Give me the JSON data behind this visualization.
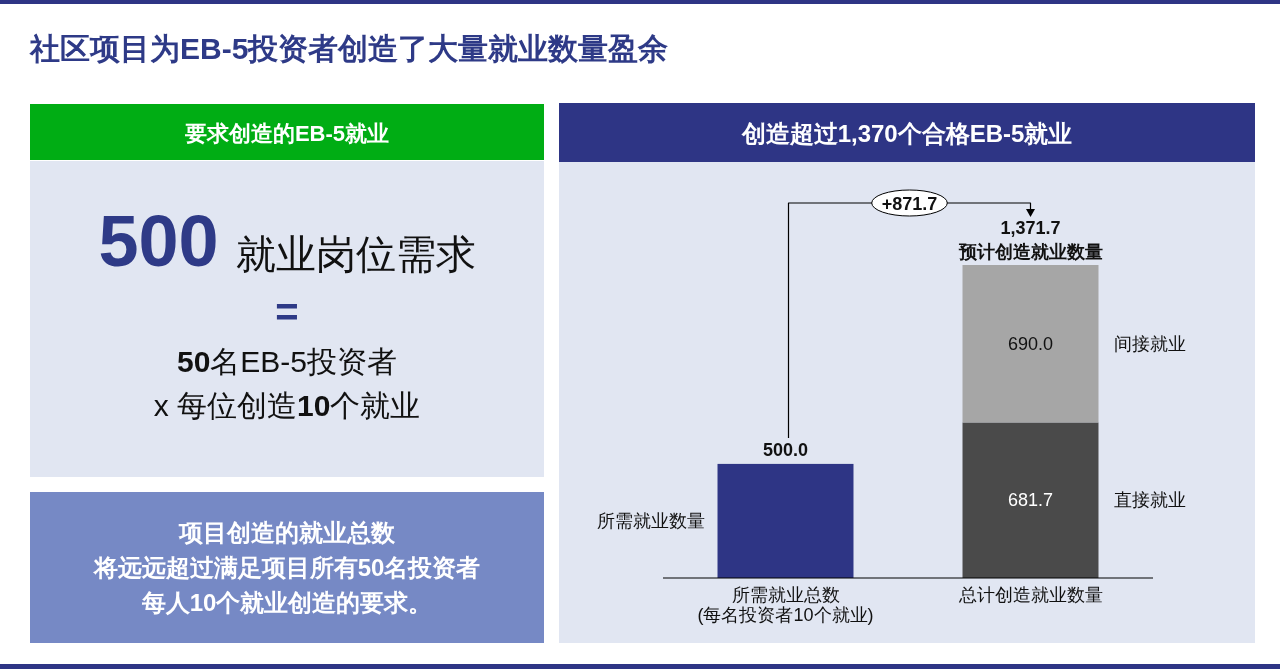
{
  "chart_data": [
    {
      "type": "other",
      "title": "要求创造的EB-5就业",
      "annotations": [
        "500",
        "就业岗位需求",
        "=",
        "**50**名EB-5投资者",
        "x 每位创造**10**个就业",
        "项目创造的就业总数",
        "将远远超过满足项目所有50名投资者",
        "每人10个就业创造的要求。"
      ]
    },
    {
      "type": "bar",
      "title": "社区项目为EB-5投资者创造了大量就业数量盈余",
      "subtitle": "创造超过1,370个合格EB-5就业",
      "categories": [
        "所需就业总数\n(每名投资者10个就业)",
        "总计创造就业数量"
      ],
      "stacked": true,
      "tick_labels": "x",
      "series": [
        {
          "name": "所需就业数量",
          "color": "#2e3585",
          "values": [
            500,
            null
          ],
          "value_labels": [
            "500.0",
            null
          ]
        },
        {
          "name": "直接就业",
          "color": "#4a4a4a",
          "values": [
            null,
            681.7
          ],
          "value_labels": [
            null,
            "681.7"
          ]
        },
        {
          "name": "间接就业",
          "color": "#a6a6a6",
          "values": [
            null,
            690.0
          ],
          "value_labels": [
            null,
            "690.0"
          ]
        }
      ],
      "totals": [
        null,
        "1,371.7"
      ],
      "annotations": [
        "+871.7",
        {
          "text": "预计创造就业数量",
          "x": "总计创造就业数量",
          "y": 1371.7
        }
      ]
    }
  ]
}
